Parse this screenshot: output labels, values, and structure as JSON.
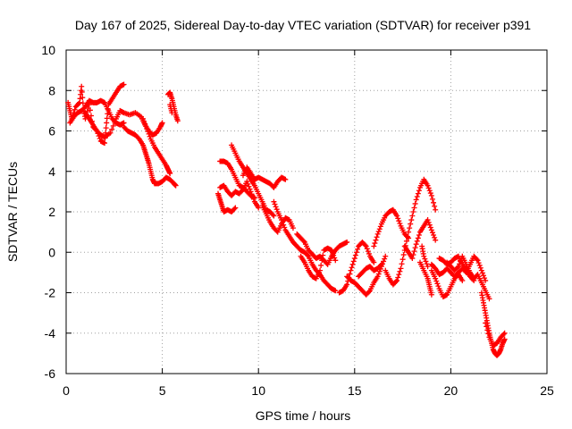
{
  "chart_data": {
    "type": "scatter",
    "title": "Day 167 of 2025, Sidereal Day-to-day VTEC variation (SDTVAR) for receiver p391",
    "xlabel": "GPS time / hours",
    "ylabel": "SDTVAR / TECUs",
    "xlim": [
      0,
      25
    ],
    "ylim": [
      -6,
      10
    ],
    "xticks": [
      0,
      5,
      10,
      15,
      20,
      25
    ],
    "yticks": [
      -6,
      -4,
      -2,
      0,
      2,
      4,
      6,
      8,
      10
    ],
    "grid": true,
    "marker": "plus",
    "color": "#ff0000",
    "series": [
      {
        "name": "SDTVAR",
        "points": [
          [
            0.1,
            7.4
          ],
          [
            0.2,
            7.0
          ],
          [
            0.3,
            6.6
          ],
          [
            0.5,
            7.2
          ],
          [
            0.7,
            7.4
          ],
          [
            0.8,
            8.2
          ],
          [
            0.9,
            7.1
          ],
          [
            1.0,
            6.6
          ],
          [
            1.2,
            7.3
          ],
          [
            1.4,
            6.2
          ],
          [
            1.6,
            6.0
          ],
          [
            1.8,
            5.5
          ],
          [
            2.0,
            5.4
          ],
          [
            2.1,
            6.4
          ],
          [
            2.2,
            7.3
          ],
          [
            2.4,
            7.6
          ],
          [
            2.6,
            7.9
          ],
          [
            2.8,
            8.2
          ],
          [
            3.0,
            8.3
          ],
          [
            0.2,
            6.4
          ],
          [
            0.4,
            6.7
          ],
          [
            0.6,
            6.9
          ],
          [
            0.8,
            7.0
          ],
          [
            1.0,
            7.2
          ],
          [
            1.2,
            7.5
          ],
          [
            1.4,
            7.4
          ],
          [
            1.6,
            7.4
          ],
          [
            1.8,
            7.5
          ],
          [
            2.0,
            7.4
          ],
          [
            2.2,
            7.0
          ],
          [
            2.4,
            6.6
          ],
          [
            2.6,
            6.4
          ],
          [
            2.8,
            6.3
          ],
          [
            3.0,
            6.4
          ],
          [
            1.0,
            6.9
          ],
          [
            1.2,
            6.6
          ],
          [
            1.4,
            6.3
          ],
          [
            1.6,
            6.0
          ],
          [
            1.8,
            5.8
          ],
          [
            2.0,
            5.7
          ],
          [
            2.3,
            5.9
          ],
          [
            2.6,
            6.6
          ],
          [
            2.8,
            7.0
          ],
          [
            3.0,
            6.9
          ],
          [
            3.3,
            6.8
          ],
          [
            3.6,
            6.9
          ],
          [
            3.9,
            6.7
          ],
          [
            4.1,
            6.3
          ],
          [
            4.3,
            6.0
          ],
          [
            4.5,
            5.8
          ],
          [
            4.7,
            5.9
          ],
          [
            4.9,
            6.2
          ],
          [
            5.0,
            6.4
          ],
          [
            3.0,
            6.2
          ],
          [
            3.2,
            6.0
          ],
          [
            3.4,
            5.9
          ],
          [
            3.6,
            5.8
          ],
          [
            3.8,
            5.6
          ],
          [
            4.0,
            5.3
          ],
          [
            4.1,
            5.0
          ],
          [
            4.2,
            4.7
          ],
          [
            4.3,
            4.4
          ],
          [
            4.4,
            4.0
          ],
          [
            4.5,
            3.6
          ],
          [
            4.6,
            3.4
          ],
          [
            4.8,
            3.4
          ],
          [
            5.0,
            3.5
          ],
          [
            5.2,
            3.7
          ],
          [
            5.4,
            3.6
          ],
          [
            5.6,
            3.4
          ],
          [
            5.7,
            3.3
          ],
          [
            4.0,
            6.6
          ],
          [
            4.2,
            6.1
          ],
          [
            4.4,
            5.6
          ],
          [
            4.6,
            5.2
          ],
          [
            4.8,
            4.9
          ],
          [
            5.0,
            4.6
          ],
          [
            5.2,
            4.3
          ],
          [
            5.3,
            4.1
          ],
          [
            5.4,
            3.9
          ],
          [
            5.3,
            7.8
          ],
          [
            5.4,
            7.9
          ],
          [
            5.5,
            7.6
          ],
          [
            5.6,
            7.2
          ],
          [
            5.7,
            6.8
          ],
          [
            5.8,
            6.5
          ],
          [
            5.4,
            7.3
          ],
          [
            5.5,
            6.9
          ],
          [
            7.9,
            2.9
          ],
          [
            8.0,
            2.6
          ],
          [
            8.1,
            2.3
          ],
          [
            8.2,
            2.0
          ],
          [
            8.4,
            2.1
          ],
          [
            8.6,
            2.0
          ],
          [
            8.8,
            2.2
          ],
          [
            8.0,
            4.5
          ],
          [
            8.2,
            4.5
          ],
          [
            8.4,
            4.4
          ],
          [
            8.6,
            4.1
          ],
          [
            8.8,
            3.7
          ],
          [
            9.0,
            3.3
          ],
          [
            9.2,
            3.2
          ],
          [
            9.4,
            3.0
          ],
          [
            9.6,
            2.8
          ],
          [
            9.8,
            2.7
          ],
          [
            8.6,
            5.3
          ],
          [
            8.8,
            4.9
          ],
          [
            9.0,
            4.5
          ],
          [
            9.2,
            4.2
          ],
          [
            9.4,
            3.9
          ],
          [
            9.6,
            3.6
          ],
          [
            9.8,
            3.3
          ],
          [
            10.0,
            2.9
          ],
          [
            10.2,
            2.5
          ],
          [
            10.4,
            2.1
          ],
          [
            10.6,
            2.0
          ],
          [
            10.8,
            1.8
          ],
          [
            8.0,
            3.2
          ],
          [
            8.2,
            3.3
          ],
          [
            8.4,
            3.0
          ],
          [
            8.6,
            2.8
          ],
          [
            8.8,
            3.0
          ],
          [
            9.0,
            2.9
          ],
          [
            9.2,
            3.1
          ],
          [
            9.4,
            3.5
          ],
          [
            9.6,
            3.0
          ],
          [
            9.8,
            2.5
          ],
          [
            10.0,
            2.2
          ],
          [
            9.2,
            3.8
          ],
          [
            9.4,
            4.2
          ],
          [
            9.6,
            3.9
          ],
          [
            9.8,
            3.6
          ],
          [
            10.0,
            3.7
          ],
          [
            10.2,
            3.6
          ],
          [
            10.4,
            3.5
          ],
          [
            10.6,
            3.4
          ],
          [
            10.8,
            3.2
          ],
          [
            11.0,
            3.5
          ],
          [
            11.2,
            3.7
          ],
          [
            11.4,
            3.6
          ],
          [
            10.2,
            2.3
          ],
          [
            10.4,
            1.9
          ],
          [
            10.6,
            1.5
          ],
          [
            10.8,
            1.2
          ],
          [
            11.0,
            1.0
          ],
          [
            11.2,
            1.4
          ],
          [
            11.4,
            1.7
          ],
          [
            11.6,
            1.6
          ],
          [
            11.8,
            1.2
          ],
          [
            10.8,
            2.5
          ],
          [
            11.0,
            2.0
          ],
          [
            11.2,
            1.6
          ],
          [
            11.4,
            1.1
          ],
          [
            11.6,
            0.8
          ],
          [
            11.8,
            0.5
          ],
          [
            12.0,
            0.3
          ],
          [
            12.2,
            0.1
          ],
          [
            12.4,
            0.0
          ],
          [
            12.6,
            -0.2
          ],
          [
            12.8,
            -0.6
          ],
          [
            13.0,
            -0.9
          ],
          [
            13.2,
            -1.1
          ],
          [
            13.4,
            -1.4
          ],
          [
            13.6,
            -1.6
          ],
          [
            13.8,
            -1.8
          ],
          [
            14.0,
            -1.9
          ],
          [
            12.0,
            0.9
          ],
          [
            12.2,
            0.7
          ],
          [
            12.4,
            0.5
          ],
          [
            12.6,
            0.1
          ],
          [
            12.8,
            -0.1
          ],
          [
            13.0,
            -0.3
          ],
          [
            13.2,
            -0.2
          ],
          [
            13.4,
            -0.4
          ],
          [
            13.6,
            -0.6
          ],
          [
            13.8,
            -0.2
          ],
          [
            14.0,
            0.1
          ],
          [
            14.2,
            0.3
          ],
          [
            14.4,
            0.4
          ],
          [
            14.6,
            0.5
          ],
          [
            12.2,
            -0.2
          ],
          [
            12.4,
            -0.5
          ],
          [
            12.6,
            -0.9
          ],
          [
            12.8,
            -1.2
          ],
          [
            13.0,
            -1.3
          ],
          [
            13.2,
            -0.9
          ],
          [
            13.4,
            0.1
          ],
          [
            13.6,
            0.2
          ],
          [
            13.8,
            0.1
          ],
          [
            14.0,
            -0.4
          ],
          [
            14.2,
            -2.0
          ],
          [
            14.4,
            -1.9
          ],
          [
            14.6,
            -1.6
          ],
          [
            14.8,
            -0.9
          ],
          [
            15.0,
            -0.3
          ],
          [
            15.2,
            0.3
          ],
          [
            15.4,
            0.5
          ],
          [
            15.6,
            0.3
          ],
          [
            15.8,
            -0.2
          ],
          [
            16.0,
            -0.5
          ],
          [
            14.6,
            -1.2
          ],
          [
            14.8,
            -1.4
          ],
          [
            15.0,
            -1.5
          ],
          [
            15.2,
            -1.7
          ],
          [
            15.4,
            -1.9
          ],
          [
            15.6,
            -2.1
          ],
          [
            15.8,
            -1.9
          ],
          [
            16.0,
            -1.5
          ],
          [
            16.2,
            -1.2
          ],
          [
            16.4,
            -0.7
          ],
          [
            16.6,
            -0.2
          ],
          [
            15.2,
            -1.2
          ],
          [
            15.4,
            -1.0
          ],
          [
            15.6,
            -0.8
          ],
          [
            15.8,
            -0.7
          ],
          [
            16.0,
            -0.9
          ],
          [
            16.2,
            -0.8
          ],
          [
            16.4,
            -0.6
          ],
          [
            16.0,
            0.3
          ],
          [
            16.2,
            0.9
          ],
          [
            16.4,
            1.4
          ],
          [
            16.6,
            1.8
          ],
          [
            16.8,
            2.0
          ],
          [
            17.0,
            2.1
          ],
          [
            17.2,
            1.8
          ],
          [
            17.4,
            1.3
          ],
          [
            17.6,
            0.9
          ],
          [
            17.8,
            0.7
          ],
          [
            16.6,
            -0.9
          ],
          [
            16.8,
            -1.3
          ],
          [
            17.0,
            -1.6
          ],
          [
            17.2,
            -1.4
          ],
          [
            17.4,
            -0.8
          ],
          [
            17.6,
            0.1
          ],
          [
            17.8,
            1.0
          ],
          [
            18.0,
            1.8
          ],
          [
            18.2,
            2.6
          ],
          [
            18.4,
            3.2
          ],
          [
            18.6,
            3.6
          ],
          [
            18.8,
            3.3
          ],
          [
            19.0,
            2.8
          ],
          [
            19.2,
            2.1
          ],
          [
            17.6,
            0.3
          ],
          [
            17.8,
            0.0
          ],
          [
            18.0,
            -0.3
          ],
          [
            18.2,
            0.4
          ],
          [
            18.4,
            1.0
          ],
          [
            18.6,
            1.3
          ],
          [
            18.8,
            1.6
          ],
          [
            19.0,
            1.1
          ],
          [
            19.2,
            0.6
          ],
          [
            19.0,
            -0.9
          ],
          [
            19.2,
            -1.3
          ],
          [
            19.4,
            -1.8
          ],
          [
            19.6,
            -2.2
          ],
          [
            19.8,
            -2.1
          ],
          [
            20.0,
            -1.7
          ],
          [
            20.2,
            -1.3
          ],
          [
            20.4,
            -1.1
          ],
          [
            20.6,
            -1.4
          ],
          [
            19.4,
            -0.3
          ],
          [
            19.6,
            -0.4
          ],
          [
            19.8,
            -0.6
          ],
          [
            20.0,
            -0.5
          ],
          [
            20.2,
            -0.3
          ],
          [
            20.4,
            -0.2
          ],
          [
            20.6,
            -0.6
          ],
          [
            20.8,
            -0.9
          ],
          [
            21.0,
            -1.2
          ],
          [
            21.2,
            -1.4
          ],
          [
            19.0,
            -0.6
          ],
          [
            19.2,
            -0.8
          ],
          [
            19.4,
            -1.1
          ],
          [
            19.6,
            -1.0
          ],
          [
            19.8,
            -0.8
          ],
          [
            20.0,
            -1.0
          ],
          [
            20.2,
            -1.2
          ],
          [
            20.4,
            -1.0
          ],
          [
            20.6,
            -0.8
          ],
          [
            20.8,
            -1.0
          ],
          [
            21.0,
            -0.6
          ],
          [
            21.2,
            -0.2
          ],
          [
            21.4,
            -0.4
          ],
          [
            21.6,
            -0.9
          ],
          [
            21.8,
            -1.4
          ],
          [
            19.8,
            -0.5
          ],
          [
            20.0,
            -0.7
          ],
          [
            20.2,
            -0.9
          ],
          [
            20.4,
            -0.7
          ],
          [
            20.6,
            -0.2
          ],
          [
            20.8,
            -0.6
          ],
          [
            21.0,
            -1.0
          ],
          [
            21.2,
            -1.3
          ],
          [
            21.4,
            -1.1
          ],
          [
            21.6,
            -1.5
          ],
          [
            21.8,
            -1.9
          ],
          [
            22.0,
            -2.3
          ],
          [
            21.6,
            -2.0
          ],
          [
            21.7,
            -2.5
          ],
          [
            21.8,
            -3.0
          ],
          [
            21.9,
            -3.5
          ],
          [
            22.0,
            -4.0
          ],
          [
            22.1,
            -4.4
          ],
          [
            22.2,
            -4.8
          ],
          [
            22.3,
            -5.0
          ],
          [
            22.4,
            -5.1
          ],
          [
            22.5,
            -5.0
          ],
          [
            22.6,
            -4.8
          ],
          [
            22.7,
            -4.5
          ],
          [
            22.8,
            -4.3
          ],
          [
            21.8,
            -3.5
          ],
          [
            22.0,
            -4.2
          ],
          [
            22.2,
            -4.6
          ],
          [
            22.4,
            -4.5
          ],
          [
            22.6,
            -4.2
          ],
          [
            22.8,
            -4.0
          ],
          [
            18.4,
            -0.5
          ],
          [
            18.6,
            -0.9
          ],
          [
            18.8,
            -1.3
          ],
          [
            18.9,
            -1.7
          ],
          [
            19.0,
            -2.1
          ],
          [
            18.5,
            0.3
          ],
          [
            18.6,
            -0.2
          ],
          [
            18.8,
            -0.7
          ]
        ]
      }
    ]
  }
}
